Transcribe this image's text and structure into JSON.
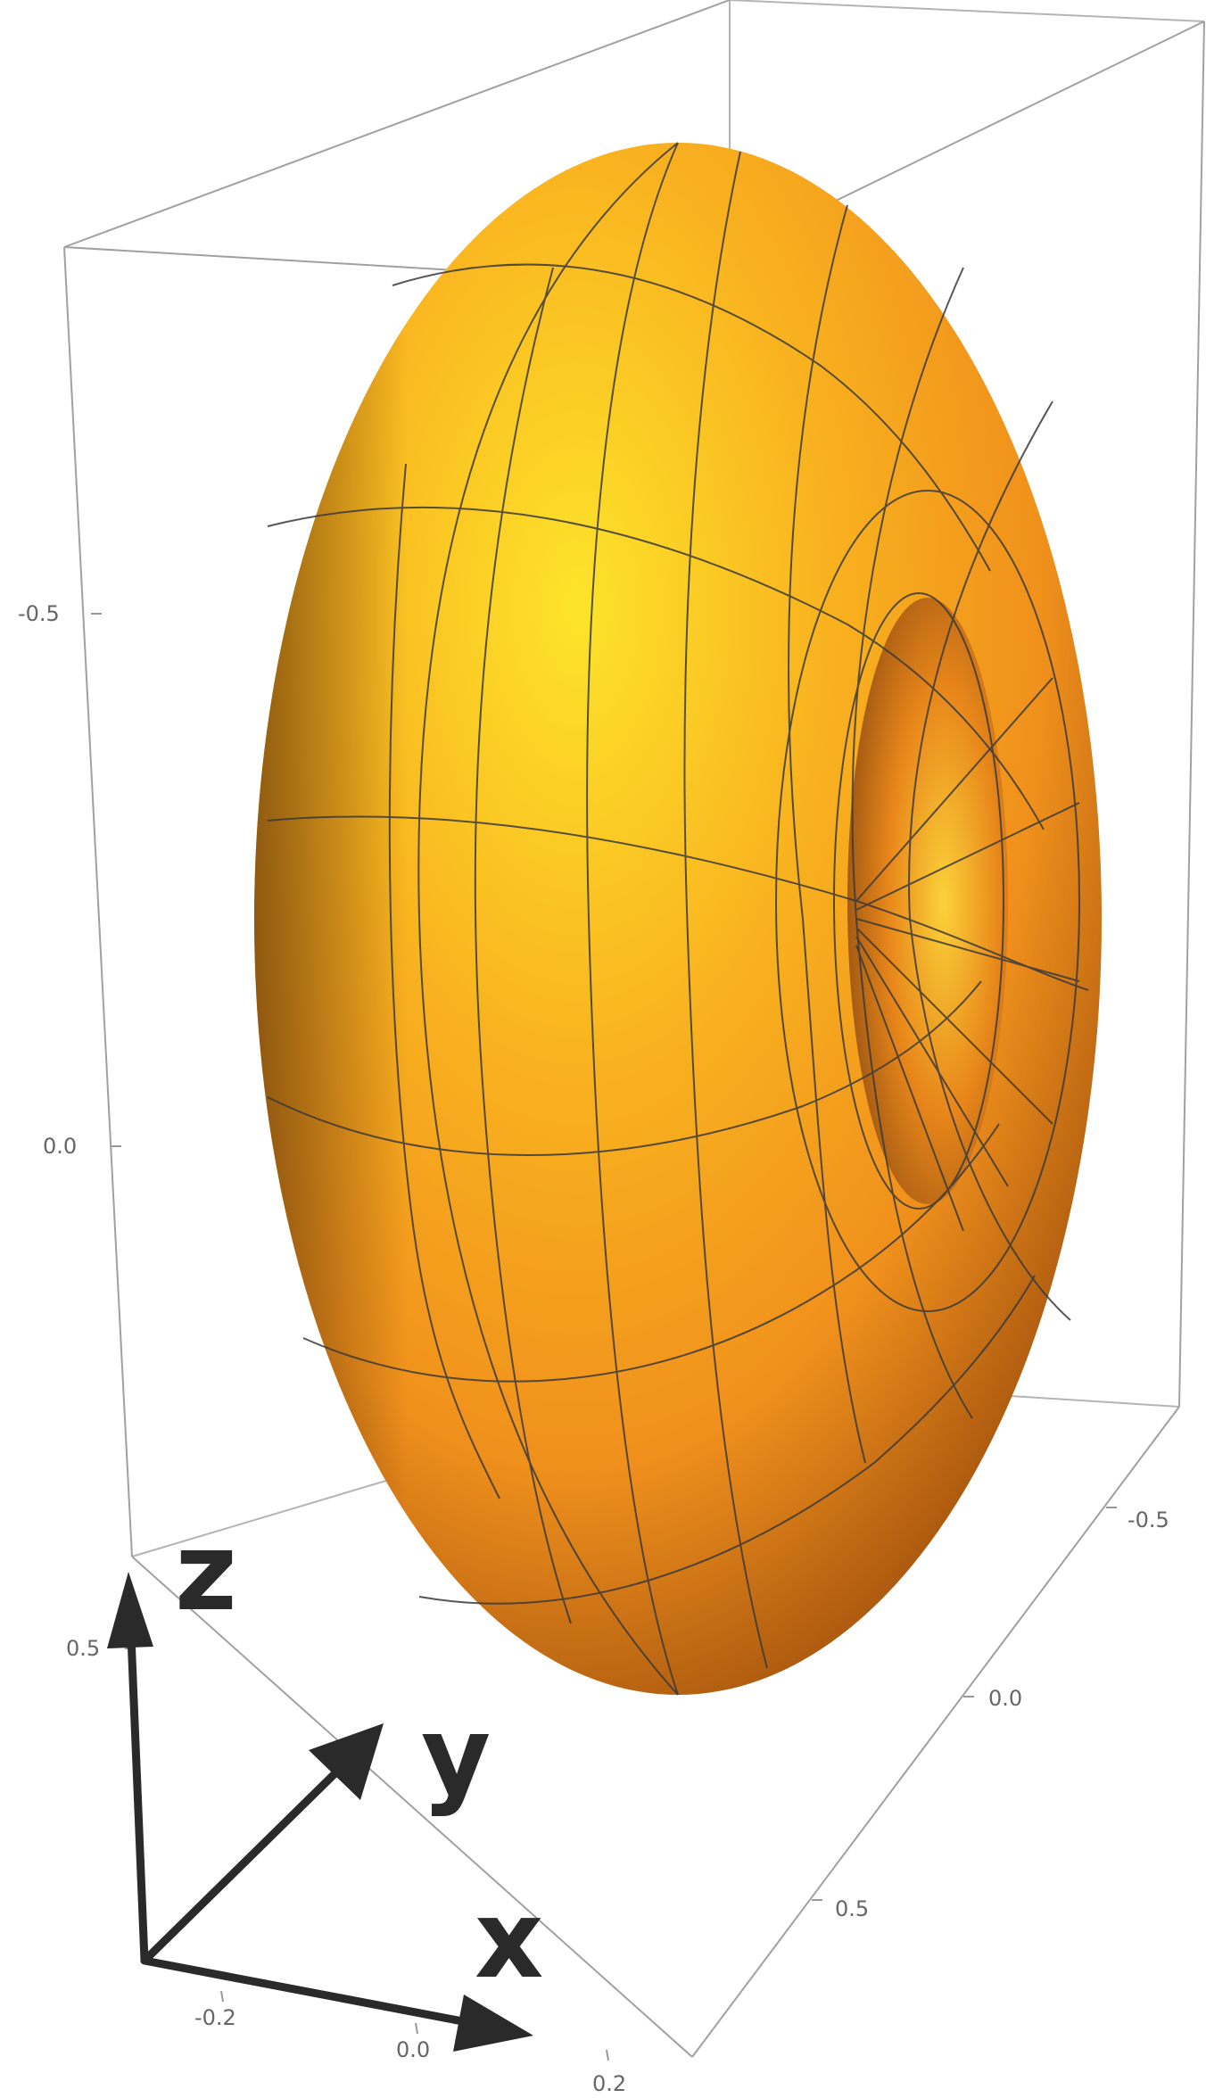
{
  "figure": {
    "type": "3d-surface-plot",
    "surface": "torus",
    "colors": {
      "surface_highlight": "#fde42a",
      "surface_mid": "#f6981f",
      "surface_shadow": "#3b1f05",
      "mesh_lines": "#3a3a3a",
      "box_lines": "#a8a8a8",
      "tick_labels": "#666666",
      "arrows": "#2a2a2a"
    },
    "ticks": {
      "vertical_axis": [
        "-0.5",
        "0.0",
        "0.5"
      ],
      "depth_axis": [
        "-0.5",
        "0.0",
        "0.5"
      ],
      "bottom_axis": [
        "-0.2",
        "0.0",
        "0.2"
      ]
    },
    "axis_indicator": {
      "x": "x",
      "y": "y",
      "z": "z"
    }
  }
}
